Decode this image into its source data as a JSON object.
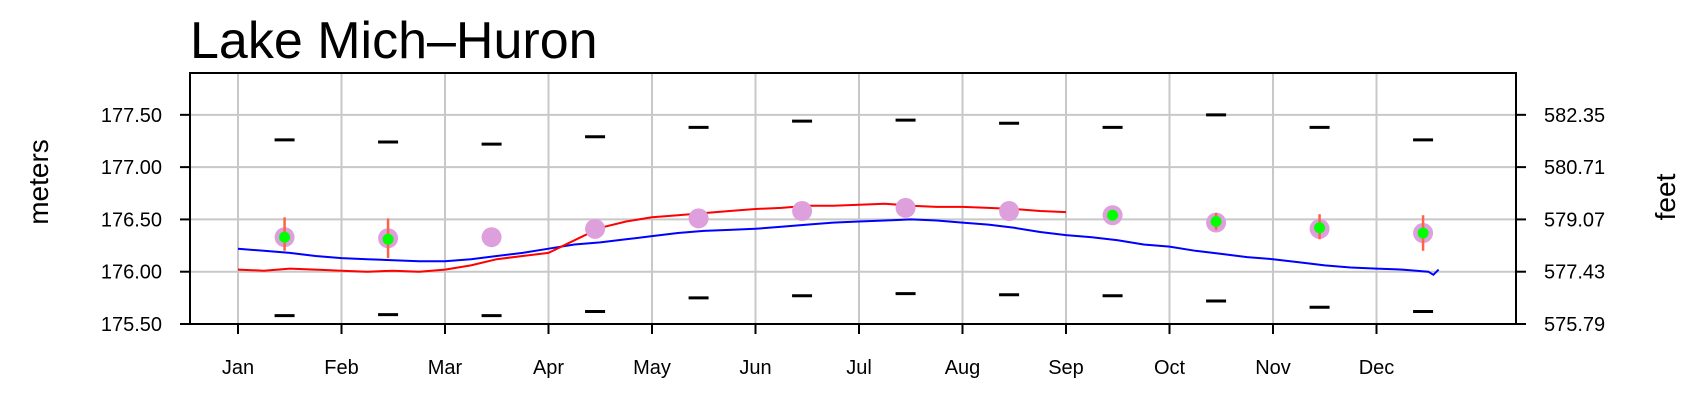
{
  "chart_data": {
    "type": "line",
    "title": "Lake Mich–Huron",
    "ylabel_left": "meters",
    "ylabel_right": "feet",
    "categories": [
      "Jan",
      "Feb",
      "Mar",
      "Apr",
      "May",
      "Jun",
      "Jul",
      "Aug",
      "Sep",
      "Oct",
      "Nov",
      "Dec"
    ],
    "ylim": [
      175.5,
      177.9
    ],
    "y_ticks_left": [
      "175.50",
      "176.00",
      "176.50",
      "177.00",
      "177.50"
    ],
    "y_ticks_right": [
      "575.79",
      "577.43",
      "579.07",
      "580.71",
      "582.35"
    ],
    "grid": true,
    "colors": {
      "current_series": "#0000ff",
      "previous_series": "#ff0000",
      "monthly_mean": "#dda0dd",
      "forecast_point": "#00ff00",
      "forecast_range": "#ff6347",
      "record_marks": "#000000"
    },
    "series": [
      {
        "style": "line",
        "color": "#0000ff",
        "x": [
          0,
          0.25,
          0.5,
          0.75,
          1,
          1.25,
          1.5,
          1.75,
          2,
          2.25,
          2.5,
          2.75,
          3,
          3.25,
          3.5,
          3.75,
          4,
          4.25,
          4.5,
          4.75,
          5,
          5.25,
          5.5,
          5.75,
          6,
          6.25,
          6.5,
          6.75,
          7,
          7.25,
          7.5,
          7.75,
          8,
          8.25,
          8.5,
          8.75,
          9,
          9.25,
          9.5,
          9.75,
          10,
          10.25,
          10.5,
          10.75,
          11,
          11.25,
          11.5,
          11.55,
          11.6
        ],
        "values": [
          176.22,
          176.2,
          176.18,
          176.15,
          176.13,
          176.12,
          176.11,
          176.1,
          176.1,
          176.12,
          176.15,
          176.18,
          176.22,
          176.26,
          176.28,
          176.31,
          176.34,
          176.37,
          176.39,
          176.4,
          176.41,
          176.43,
          176.45,
          176.47,
          176.48,
          176.49,
          176.5,
          176.49,
          176.47,
          176.45,
          176.42,
          176.38,
          176.35,
          176.33,
          176.3,
          176.26,
          176.24,
          176.2,
          176.17,
          176.14,
          176.12,
          176.09,
          176.06,
          176.04,
          176.03,
          176.02,
          176.0,
          175.97,
          176.02
        ]
      },
      {
        "style": "line",
        "color": "#ff0000",
        "x": [
          0,
          0.25,
          0.5,
          0.75,
          1,
          1.25,
          1.5,
          1.75,
          2,
          2.25,
          2.5,
          2.75,
          3,
          3.25,
          3.5,
          3.75,
          4,
          4.25,
          4.5,
          4.75,
          5,
          5.25,
          5.5,
          5.75,
          6,
          6.25,
          6.5,
          6.75,
          7,
          7.25,
          7.5,
          7.75,
          8
        ],
        "values": [
          176.02,
          176.01,
          176.03,
          176.02,
          176.01,
          176.0,
          176.01,
          176.0,
          176.02,
          176.06,
          176.12,
          176.15,
          176.18,
          176.3,
          176.42,
          176.48,
          176.52,
          176.54,
          176.56,
          176.58,
          176.6,
          176.61,
          176.63,
          176.63,
          176.64,
          176.65,
          176.63,
          176.62,
          176.62,
          176.61,
          176.6,
          176.58,
          176.57
        ]
      }
    ],
    "monthly_mean": {
      "x": [
        0.45,
        1.45,
        2.45,
        3.45,
        4.45,
        5.45,
        6.45,
        7.45,
        8.45,
        9.45,
        10.45,
        11.45
      ],
      "values": [
        176.33,
        176.32,
        176.33,
        176.41,
        176.51,
        176.58,
        176.61,
        176.58,
        176.54,
        176.47,
        176.41,
        176.37
      ]
    },
    "forecast": {
      "x": [
        0.45,
        1.45,
        8.45,
        9.45,
        10.45,
        11.45
      ],
      "values": [
        176.33,
        176.31,
        176.54,
        176.48,
        176.42,
        176.37
      ],
      "upper": [
        176.52,
        176.51,
        176.58,
        176.56,
        176.55,
        176.54
      ],
      "lower": [
        176.2,
        176.13,
        176.5,
        176.4,
        176.31,
        176.2
      ]
    },
    "record_high": {
      "x": [
        0.45,
        1.45,
        2.45,
        3.45,
        4.45,
        5.45,
        6.45,
        7.45,
        8.45,
        9.45,
        10.45,
        11.45
      ],
      "values": [
        177.26,
        177.24,
        177.22,
        177.29,
        177.38,
        177.44,
        177.45,
        177.42,
        177.38,
        177.5,
        177.38,
        177.26
      ]
    },
    "record_low": {
      "x": [
        0.45,
        1.45,
        2.45,
        3.45,
        4.45,
        5.45,
        6.45,
        7.45,
        8.45,
        9.45,
        10.45,
        11.45
      ],
      "values": [
        175.58,
        175.59,
        175.58,
        175.62,
        175.75,
        175.77,
        175.79,
        175.78,
        175.77,
        175.72,
        175.66,
        175.62
      ]
    }
  }
}
